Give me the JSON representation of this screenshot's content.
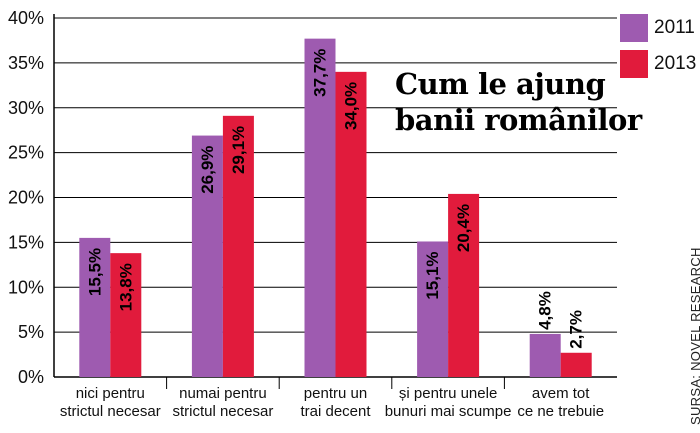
{
  "chart_data": {
    "type": "bar",
    "title": "Cum le ajung banii românilor",
    "title_lines": [
      "Cum le ajung",
      "banii românilor"
    ],
    "categories": [
      [
        "nici pentru",
        "strictul necesar"
      ],
      [
        "numai pentru",
        "strictul necesar"
      ],
      [
        "pentru un",
        "trai decent"
      ],
      [
        "și pentru unele",
        "bunuri mai scumpe"
      ],
      [
        "avem tot",
        "ce ne trebuie"
      ]
    ],
    "series": [
      {
        "name": "2011",
        "values": [
          15.5,
          26.9,
          37.7,
          15.1,
          4.8
        ],
        "labels": [
          "15,5%",
          "26,9%",
          "37,7%",
          "15,1%",
          "4,8%"
        ],
        "color": "#9e5bb0"
      },
      {
        "name": "2013",
        "values": [
          13.8,
          29.1,
          34.0,
          20.4,
          2.7
        ],
        "labels": [
          "13,8%",
          "29,1%",
          "34,0%",
          "20,4%",
          "2,7%"
        ],
        "color": "#e11b3c"
      }
    ],
    "ylim": [
      0,
      40
    ],
    "yticks": [
      "0%",
      "5%",
      "10%",
      "15%",
      "20%",
      "25%",
      "30%",
      "35%",
      "40%"
    ],
    "grid": true,
    "legend_position": "top-right",
    "source": "SURSA: NOVEL RESEARCH"
  }
}
